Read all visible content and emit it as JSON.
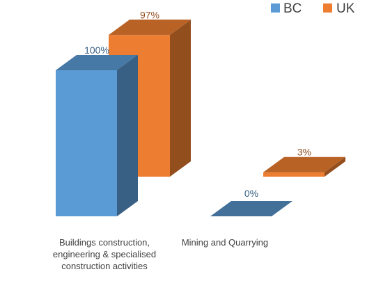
{
  "chart_data": {
    "type": "bar",
    "style": "3d-clustered-column",
    "categories": [
      [
        "Buildings construction,",
        "engineering & specialised",
        "construction activities"
      ],
      [
        "Mining and Quarrying"
      ]
    ],
    "series": [
      {
        "name": "BC",
        "values": [
          100,
          0
        ],
        "labels": [
          "100%",
          "0%"
        ],
        "color": "#5b9bd5"
      },
      {
        "name": "UK",
        "values": [
          97,
          3
        ],
        "labels": [
          "97%",
          "3%"
        ],
        "color": "#ed7d31"
      }
    ],
    "ylim": [
      0,
      100
    ],
    "unit": "%",
    "grid": false,
    "legend_position": "top-right"
  }
}
